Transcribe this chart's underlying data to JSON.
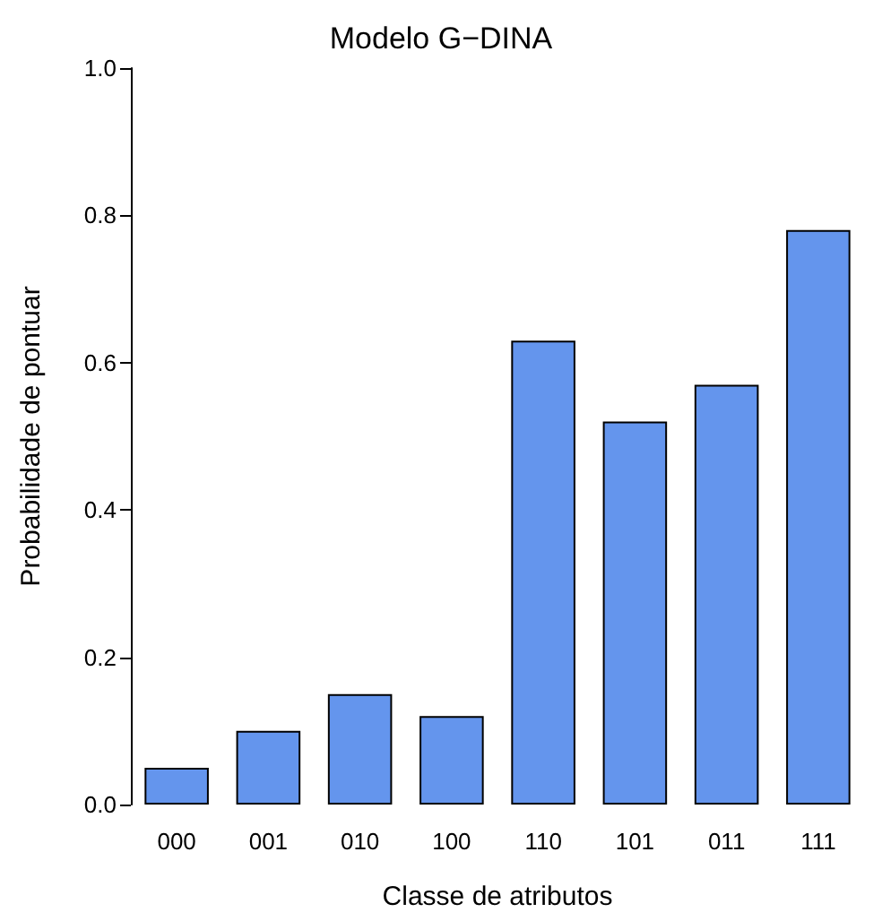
{
  "chart_data": {
    "type": "bar",
    "title": "Modelo G−DINA",
    "xlabel": "Classe de atributos",
    "ylabel": "Probabilidade de pontuar",
    "categories": [
      "000",
      "001",
      "010",
      "100",
      "110",
      "101",
      "011",
      "111"
    ],
    "values": [
      0.05,
      0.1,
      0.15,
      0.12,
      0.63,
      0.52,
      0.57,
      0.78
    ],
    "color": "#6495ed",
    "ylim": [
      0,
      1
    ],
    "yticks": [
      {
        "value": 0,
        "label": "0.0"
      },
      0.2,
      0.4,
      0.6,
      0.8,
      {
        "value": 1,
        "label": "1.0"
      }
    ],
    "grid": false
  }
}
